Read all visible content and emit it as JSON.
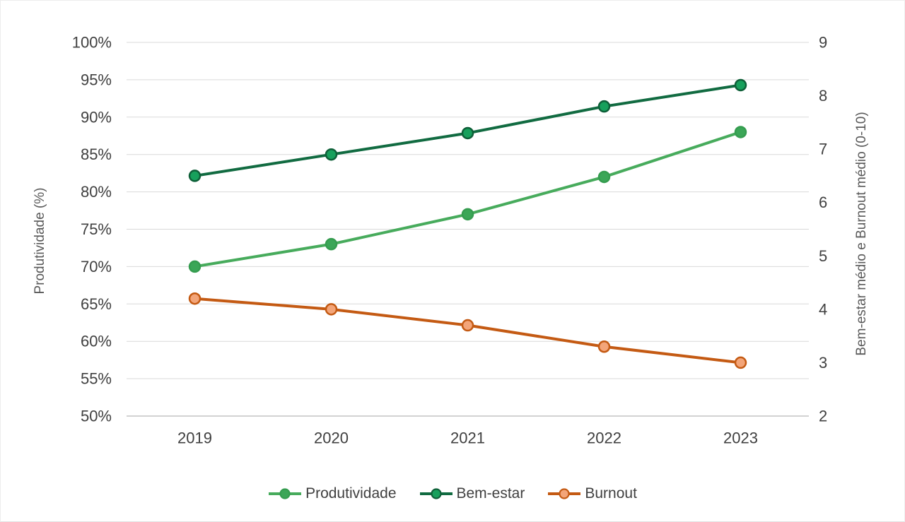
{
  "chart_data": {
    "type": "line",
    "title": "",
    "categories": [
      "2019",
      "2020",
      "2021",
      "2022",
      "2023"
    ],
    "series": [
      {
        "id": "produtividade",
        "name": "Produtividade",
        "axis": "left",
        "unit": "%",
        "values": [
          70,
          73,
          77,
          82,
          88
        ],
        "line_color": "#47ab5c",
        "marker_fill": "#3ba657",
        "marker_stroke": "#359c4f"
      },
      {
        "id": "bem-estar",
        "name": "Bem-estar",
        "axis": "right",
        "values": [
          6.5,
          6.9,
          7.3,
          7.8,
          8.2
        ],
        "line_color": "#116b41",
        "marker_fill": "#17a05c",
        "marker_stroke": "#0e5f38"
      },
      {
        "id": "burnout",
        "name": "Burnout",
        "axis": "right",
        "values": [
          4.2,
          4.0,
          3.7,
          3.3,
          3.0
        ],
        "line_color": "#c45a13",
        "marker_fill": "#f3a579",
        "marker_stroke": "#c45a13"
      }
    ],
    "left_axis": {
      "title": "Produtividade (%)",
      "range": [
        50,
        100
      ],
      "tick_values": [
        100,
        95,
        90,
        85,
        80,
        75,
        70,
        65,
        60,
        55,
        50
      ],
      "tick_labels": [
        "100%",
        "95%",
        "90%",
        "85%",
        "80%",
        "75%",
        "70%",
        "65%",
        "60%",
        "55%",
        "50%"
      ]
    },
    "right_axis": {
      "title": "Bem-estar médio e Burnout médio (0-10)",
      "range": [
        2,
        9
      ],
      "tick_values": [
        9,
        8,
        7,
        6,
        5,
        4,
        3,
        2
      ],
      "tick_labels": [
        "9",
        "8",
        "7",
        "6",
        "5",
        "4",
        "3",
        "2"
      ]
    },
    "x_axis": {
      "tick_labels": [
        "2019",
        "2020",
        "2021",
        "2022",
        "2023"
      ]
    },
    "legend": {
      "position": "bottom",
      "entries": [
        "Produtividade",
        "Bem-estar",
        "Burnout"
      ]
    },
    "grid": true,
    "colors": {
      "gridline": "#d9d9d9",
      "axis_line": "#c3c3c3",
      "tick_text": "#404040",
      "axis_title_text": "#595959"
    }
  }
}
